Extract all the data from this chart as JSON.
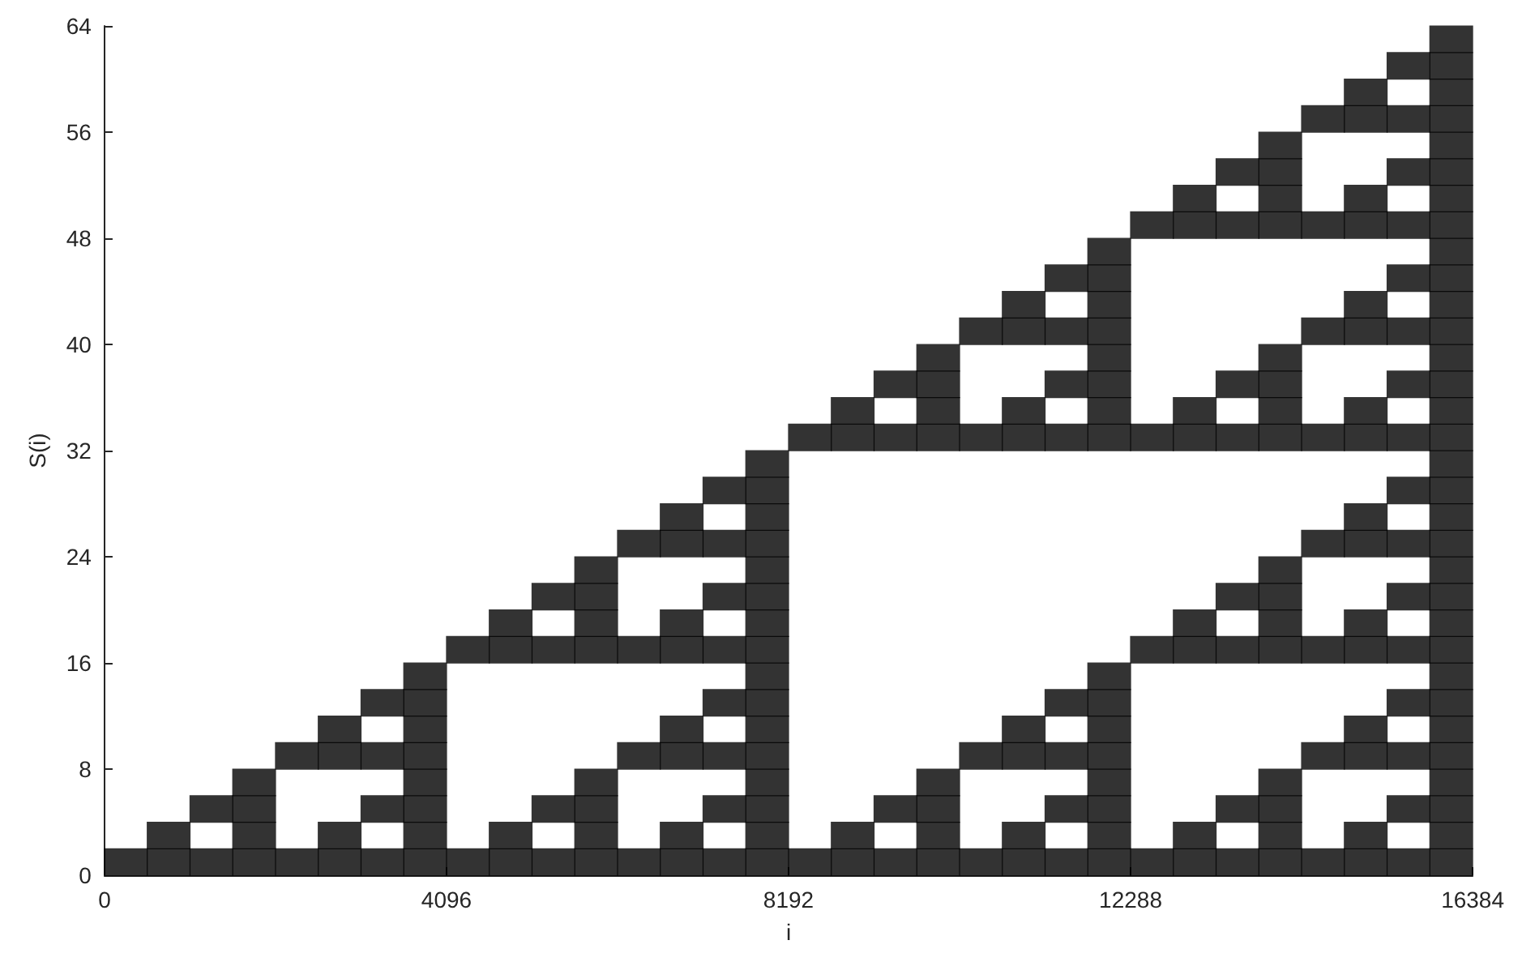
{
  "chart_data": {
    "type": "scatter",
    "xlabel": "i",
    "ylabel": "S(i)",
    "xlim": [
      0,
      16384
    ],
    "xticks": [
      0,
      4096,
      8192,
      12288,
      16384
    ],
    "ylim": [
      0,
      64
    ],
    "yticks": [
      0,
      8,
      16,
      24,
      32,
      40,
      48,
      56,
      64
    ],
    "grid": false,
    "marker": "square",
    "series": [
      {
        "color": "#000000",
        "x": [
          256,
          768,
          768,
          1280,
          1280,
          1792,
          1792,
          1792,
          1792,
          2304,
          2304,
          2816,
          2816,
          2816,
          2816,
          3328,
          3328,
          3328,
          3328,
          3840,
          3840,
          3840,
          3840,
          3840,
          3840,
          3840,
          3840
        ],
        "values": [
          1,
          1,
          3,
          1,
          5,
          1,
          3,
          5,
          7,
          1,
          9,
          1,
          3,
          9,
          11,
          1,
          5,
          9,
          13,
          1,
          3,
          5,
          7,
          9,
          11,
          13,
          15
        ]
      },
      {
        "color": "#000000",
        "x": [
          4352,
          4352,
          4864,
          4864,
          4864,
          4864,
          5376,
          5376,
          5376,
          5376,
          5888,
          5888,
          5888,
          5888,
          5888,
          5888,
          5888,
          5888,
          6400,
          6400,
          6400,
          6400,
          6912,
          6912,
          6912,
          6912,
          6912,
          6912,
          6912,
          6912,
          7424,
          7424,
          7424,
          7424,
          7424,
          7424,
          7424,
          7424,
          7936,
          7936,
          7936,
          7936,
          7936,
          7936,
          7936,
          7936,
          7936,
          7936,
          7936,
          7936,
          7936,
          7936,
          7936,
          7936
        ],
        "values": [
          1,
          17,
          1,
          3,
          17,
          19,
          1,
          5,
          17,
          21,
          1,
          3,
          5,
          7,
          17,
          19,
          21,
          23,
          1,
          9,
          17,
          25,
          1,
          3,
          9,
          11,
          17,
          19,
          25,
          27,
          1,
          5,
          9,
          13,
          17,
          21,
          25,
          29,
          1,
          3,
          5,
          7,
          9,
          11,
          13,
          15,
          17,
          19,
          21,
          23,
          25,
          27,
          29,
          31
        ]
      },
      {
        "color": "#000000",
        "x": [
          8448,
          8448,
          8960,
          8960,
          8960,
          8960,
          9472,
          9472,
          9472,
          9472,
          9984,
          9984,
          9984,
          9984,
          9984,
          9984,
          9984,
          9984,
          10496,
          10496,
          10496,
          10496,
          11008,
          11008,
          11008,
          11008,
          11008,
          11008,
          11008,
          11008,
          11520,
          11520,
          11520,
          11520,
          11520,
          11520,
          11520,
          11520,
          12032,
          12032,
          12032,
          12032,
          12032,
          12032,
          12032,
          12032,
          12032,
          12032,
          12032,
          12032,
          12032,
          12032,
          12032,
          12032
        ],
        "values": [
          1,
          33,
          1,
          3,
          33,
          35,
          1,
          5,
          33,
          37,
          1,
          3,
          5,
          7,
          33,
          35,
          37,
          39,
          1,
          9,
          33,
          41,
          1,
          3,
          9,
          11,
          33,
          35,
          41,
          43,
          1,
          5,
          9,
          13,
          33,
          37,
          41,
          45,
          1,
          3,
          5,
          7,
          9,
          11,
          13,
          15,
          33,
          35,
          37,
          39,
          41,
          43,
          45,
          47
        ]
      },
      {
        "color": "#000000",
        "x": [
          12544,
          12544,
          12544,
          12544,
          13056,
          13056,
          13056,
          13056,
          13056,
          13056,
          13056,
          13056,
          13568,
          13568,
          13568,
          13568,
          13568,
          13568,
          13568,
          13568,
          14080,
          14080,
          14080,
          14080,
          14080,
          14080,
          14080,
          14080,
          14080,
          14080,
          14080,
          14080,
          14080,
          14080,
          14080,
          14080,
          14592,
          14592,
          14592,
          14592,
          14592,
          14592,
          14592,
          14592,
          15104,
          15104,
          15104,
          15104,
          15104,
          15104,
          15104,
          15104,
          15104,
          15104,
          15104,
          15104,
          15104,
          15104,
          15104,
          15104
        ],
        "values": [
          1,
          17,
          33,
          49,
          1,
          3,
          17,
          19,
          33,
          35,
          49,
          51,
          1,
          5,
          17,
          21,
          33,
          37,
          49,
          53,
          1,
          3,
          5,
          7,
          17,
          19,
          21,
          23,
          33,
          35,
          37,
          39,
          49,
          51,
          53,
          55,
          1,
          9,
          17,
          25,
          33,
          41,
          49,
          57,
          1,
          3,
          9,
          11,
          17,
          19,
          25,
          27,
          33,
          35,
          41,
          43,
          49,
          51,
          57,
          59
        ]
      },
      {
        "color": "#000000",
        "x": [
          15616,
          15616,
          15616,
          15616,
          15616,
          15616,
          15616,
          15616,
          15616,
          15616,
          15616,
          15616,
          15616,
          15616,
          15616,
          15616,
          16128,
          16128,
          16128,
          16128,
          16128,
          16128,
          16128,
          16128,
          16128,
          16128,
          16128,
          16128,
          16128,
          16128,
          16128,
          16128,
          16128,
          16128,
          16128,
          16128,
          16128,
          16128,
          16128,
          16128,
          16128,
          16128,
          16128,
          16128,
          16128,
          16128,
          16128,
          16128
        ],
        "values": [
          1,
          5,
          9,
          13,
          17,
          21,
          25,
          29,
          33,
          37,
          41,
          45,
          49,
          53,
          57,
          61,
          1,
          3,
          5,
          7,
          9,
          11,
          13,
          15,
          17,
          19,
          21,
          23,
          25,
          27,
          29,
          31,
          33,
          35,
          37,
          39,
          41,
          43,
          45,
          47,
          49,
          51,
          53,
          55,
          57,
          59,
          61,
          63
        ]
      }
    ]
  }
}
